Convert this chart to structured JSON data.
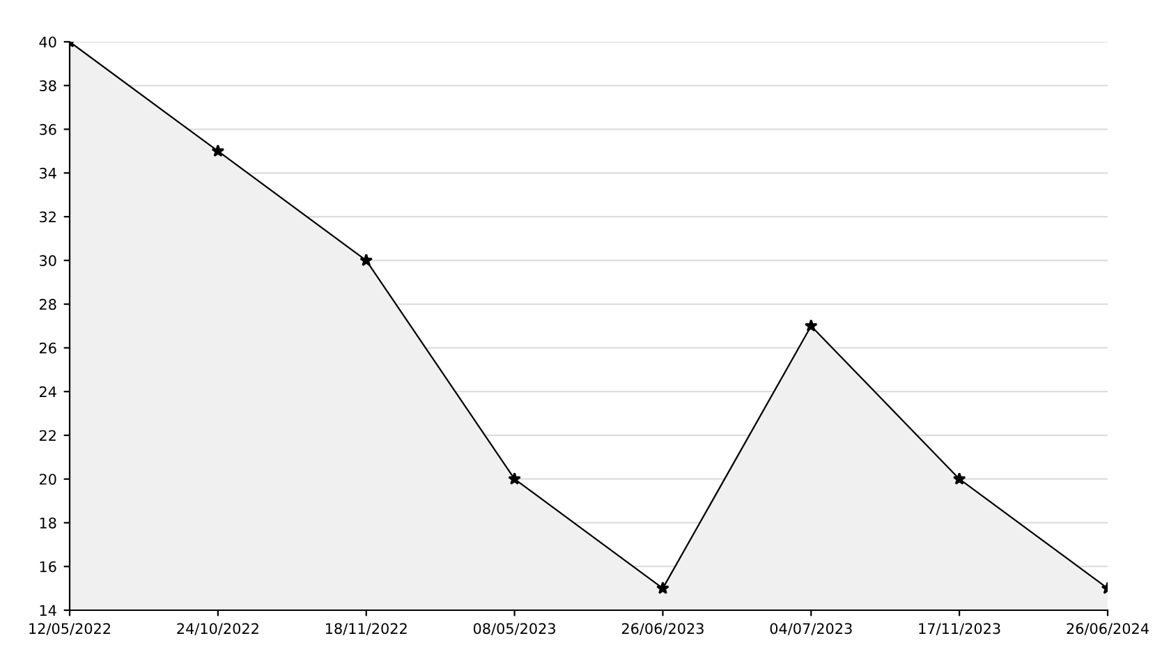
{
  "chart_data": {
    "type": "area",
    "categories": [
      "12/05/2022",
      "24/10/2022",
      "18/11/2022",
      "08/05/2023",
      "26/06/2023",
      "04/07/2023",
      "17/11/2023",
      "26/06/2024"
    ],
    "series": [
      {
        "color": "#000000",
        "values": [
          40,
          35,
          30,
          20,
          15,
          27,
          20,
          15
        ]
      }
    ],
    "ylim": [
      14,
      40
    ],
    "yticks": [
      14,
      16,
      18,
      20,
      22,
      24,
      26,
      28,
      30,
      32,
      34,
      36,
      38,
      40
    ],
    "grid": "y",
    "marker": "star",
    "line_style": "solid"
  }
}
